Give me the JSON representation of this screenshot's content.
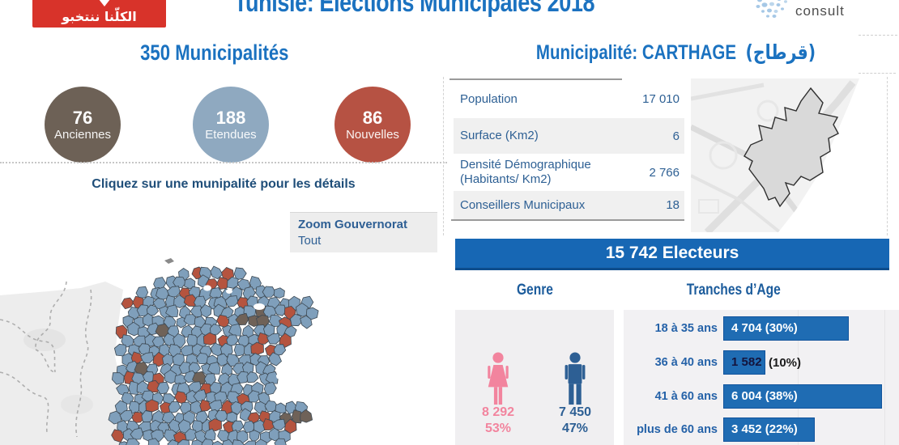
{
  "header": {
    "title": "Tunisie: Elections Municipales 2018",
    "vote_logo_text": "الكلّنا ننتخبو",
    "consult_logo_text": "consult"
  },
  "left": {
    "heading": "350 Municipalités",
    "circles": [
      {
        "value": "76",
        "label": "Anciennes",
        "color": "#6d6156"
      },
      {
        "value": "188",
        "label": "Etendues",
        "color": "#8fa9c0"
      },
      {
        "value": "86",
        "label": "Nouvelles",
        "color": "#b65243"
      }
    ],
    "hint": "Cliquez sur une munipalité pour les détails",
    "zoom_filter": {
      "label": "Zoom Gouvernorat",
      "value": "Tout"
    }
  },
  "right": {
    "heading_prefix": "Municipalité: CARTHAGE",
    "heading_ar": "(قرطاج)",
    "stats": [
      {
        "label": "Population",
        "value": "17 010"
      },
      {
        "label": "Surface (Km2)",
        "value": "6"
      },
      {
        "label": "Densité Démographique (Habitants/ Km2)",
        "value": "2 766"
      },
      {
        "label": "Conseillers Municipaux",
        "value": "18"
      }
    ],
    "electeurs_banner": "15 742 Electeurs",
    "genre": {
      "heading": "Genre",
      "female": {
        "value": "8 292",
        "pct": "53%",
        "color": "#f2849e"
      },
      "male": {
        "value": "7 450",
        "pct": "47%",
        "color": "#2d5f94"
      }
    },
    "age": {
      "heading": "Tranches d’Age",
      "bar_color": "#1f6cb3",
      "rows": [
        {
          "label": "18 à 35 ans",
          "inside": "4 704 (30%)",
          "outside": "",
          "pct": 30,
          "dark_inside": false
        },
        {
          "label": "36 à 40 ans",
          "inside": "1 582",
          "outside": "(10%)",
          "pct": 10,
          "dark_inside": true
        },
        {
          "label": "41 à 60 ans",
          "inside": "6 004 (38%)",
          "outside": "",
          "pct": 38,
          "dark_inside": false
        },
        {
          "label": "plus de 60 ans",
          "inside": "3 452 (22%)",
          "outside": "",
          "pct": 22,
          "dark_inside": false
        }
      ]
    }
  },
  "map_colors": {
    "etendues": "#7f9fbb",
    "nouvelles": "#b5543f",
    "anciennes": "#6f6258",
    "stroke": "#3c4852"
  },
  "chart_data": [
    {
      "type": "bar",
      "title": "350 Municipalités",
      "categories": [
        "Anciennes",
        "Etendues",
        "Nouvelles"
      ],
      "values": [
        76,
        188,
        86
      ],
      "colors": [
        "#6d6156",
        "#8fa9c0",
        "#b65243"
      ]
    },
    {
      "type": "table",
      "title": "Municipalité: CARTHAGE (قرطاج)",
      "rows": [
        [
          "Population",
          "17 010"
        ],
        [
          "Surface (Km2)",
          "6"
        ],
        [
          "Densité Démographique (Habitants/ Km2)",
          "2 766"
        ],
        [
          "Conseillers Municipaux",
          "18"
        ]
      ]
    },
    {
      "type": "pie",
      "title": "Genre",
      "subtitle": "15 742 Electeurs",
      "categories": [
        "Femmes",
        "Hommes"
      ],
      "values": [
        8292,
        7450
      ],
      "labels": [
        "8 292 (53%)",
        "7 450 (47%)"
      ],
      "colors": [
        "#f2849e",
        "#2d5f94"
      ]
    },
    {
      "type": "bar",
      "title": "Tranches d’Age",
      "categories": [
        "18 à 35 ans",
        "36 à 40 ans",
        "41 à 60 ans",
        "plus de 60 ans"
      ],
      "values": [
        4704,
        1582,
        6004,
        3452
      ],
      "pcts": [
        30,
        10,
        38,
        22
      ],
      "color": "#1f6cb3",
      "xlim": [
        0,
        42
      ]
    }
  ]
}
